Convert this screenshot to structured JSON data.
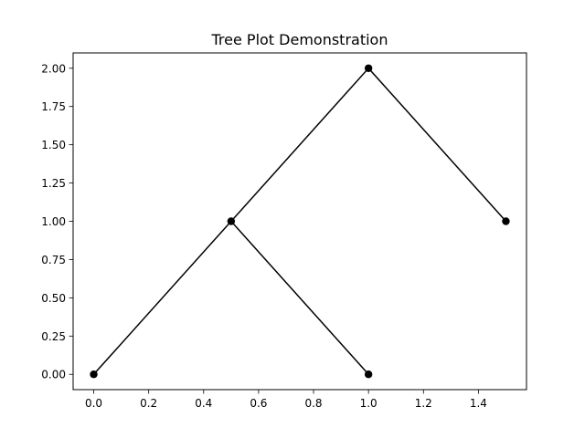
{
  "chart_data": {
    "type": "line",
    "title": "Tree Plot Demonstration",
    "xlabel": "",
    "ylabel": "",
    "xlim": [
      -0.075,
      1.575
    ],
    "ylim": [
      -0.1,
      2.1
    ],
    "x_ticks": [
      0.0,
      0.2,
      0.4,
      0.6,
      0.8,
      1.0,
      1.2,
      1.4
    ],
    "x_tick_labels": [
      "0.0",
      "0.2",
      "0.4",
      "0.6",
      "0.8",
      "1.0",
      "1.2",
      "1.4"
    ],
    "y_ticks": [
      0.0,
      0.25,
      0.5,
      0.75,
      1.0,
      1.25,
      1.5,
      1.75,
      2.0
    ],
    "y_tick_labels": [
      "0.00",
      "0.25",
      "0.50",
      "0.75",
      "1.00",
      "1.25",
      "1.50",
      "1.75",
      "2.00"
    ],
    "grid": false,
    "nodes": [
      {
        "x": 1.0,
        "y": 2.0
      },
      {
        "x": 0.5,
        "y": 1.0
      },
      {
        "x": 1.5,
        "y": 1.0
      },
      {
        "x": 0.0,
        "y": 0.0
      },
      {
        "x": 1.0,
        "y": 0.0
      }
    ],
    "edges": [
      {
        "from": [
          1.0,
          2.0
        ],
        "to": [
          0.5,
          1.0
        ]
      },
      {
        "from": [
          1.0,
          2.0
        ],
        "to": [
          1.5,
          1.0
        ]
      },
      {
        "from": [
          0.5,
          1.0
        ],
        "to": [
          0.0,
          0.0
        ]
      },
      {
        "from": [
          0.5,
          1.0
        ],
        "to": [
          1.0,
          0.0
        ]
      }
    ],
    "colors": {
      "line": "#000000",
      "marker": "#000000"
    }
  }
}
